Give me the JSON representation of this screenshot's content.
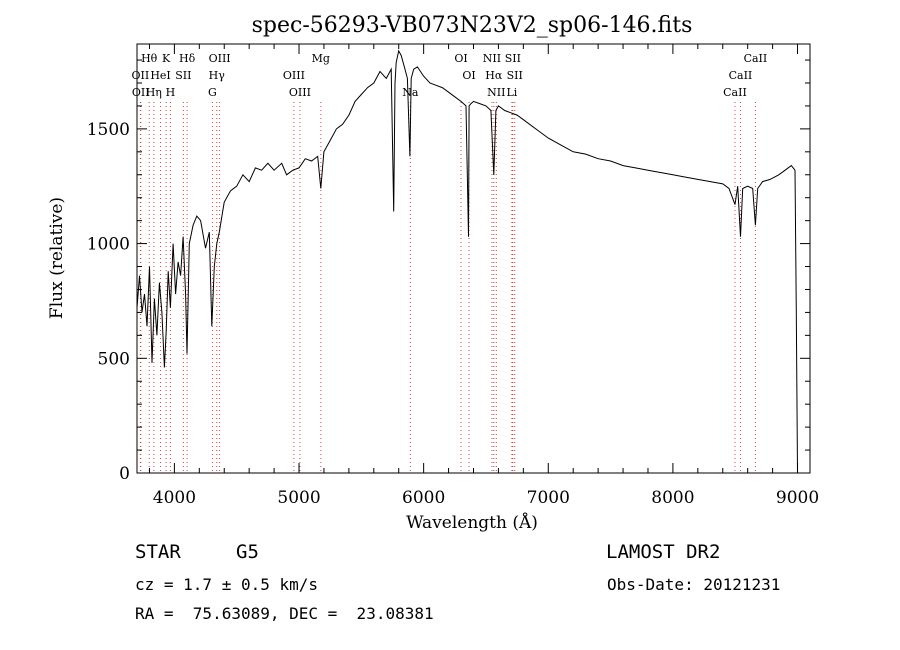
{
  "chart_data": {
    "type": "line",
    "title": "spec-56293-VB073N23V2_sp06-146.fits",
    "xlabel": "Wavelength (Å)",
    "ylabel": "Flux (relative)",
    "xlim": [
      3700,
      9100
    ],
    "ylim": [
      0,
      1870
    ],
    "x_ticks": [
      4000,
      5000,
      6000,
      7000,
      8000,
      9000
    ],
    "y_ticks": [
      0,
      500,
      1000,
      1500
    ],
    "grid": false,
    "spectrum": {
      "name": "",
      "x": [
        3700,
        3720,
        3740,
        3760,
        3780,
        3800,
        3820,
        3840,
        3860,
        3880,
        3900,
        3920,
        3934,
        3950,
        3968,
        3990,
        4010,
        4030,
        4050,
        4070,
        4090,
        4101,
        4120,
        4150,
        4180,
        4210,
        4250,
        4280,
        4300,
        4320,
        4340,
        4360,
        4400,
        4450,
        4500,
        4550,
        4600,
        4650,
        4700,
        4750,
        4800,
        4861,
        4900,
        4950,
        5000,
        5050,
        5100,
        5150,
        5175,
        5200,
        5250,
        5300,
        5350,
        5400,
        5450,
        5500,
        5550,
        5600,
        5650,
        5700,
        5740,
        5760,
        5770,
        5780,
        5800,
        5820,
        5850,
        5870,
        5890,
        5900,
        5920,
        5950,
        6000,
        6050,
        6100,
        6150,
        6200,
        6250,
        6300,
        6340,
        6360,
        6365,
        6380,
        6400,
        6450,
        6500,
        6540,
        6563,
        6580,
        6600,
        6650,
        6700,
        6750,
        6800,
        6900,
        7000,
        7100,
        7200,
        7300,
        7400,
        7500,
        7600,
        7700,
        7800,
        7900,
        8000,
        8100,
        8200,
        8300,
        8400,
        8450,
        8498,
        8520,
        8542,
        8560,
        8600,
        8640,
        8662,
        8680,
        8720,
        8780,
        8850,
        8900,
        8950,
        8980,
        8990,
        9000
      ],
      "y": [
        720,
        860,
        700,
        780,
        640,
        900,
        480,
        760,
        600,
        830,
        700,
        460,
        620,
        880,
        720,
        1000,
        780,
        920,
        860,
        1030,
        780,
        520,
        1000,
        1080,
        1120,
        1100,
        980,
        1050,
        640,
        900,
        1000,
        1050,
        1180,
        1230,
        1250,
        1300,
        1270,
        1330,
        1320,
        1350,
        1320,
        1350,
        1300,
        1320,
        1330,
        1370,
        1360,
        1380,
        1240,
        1400,
        1450,
        1500,
        1520,
        1560,
        1620,
        1650,
        1680,
        1700,
        1750,
        1720,
        1760,
        1140,
        1700,
        1790,
        1840,
        1820,
        1760,
        1720,
        1380,
        1720,
        1760,
        1770,
        1730,
        1700,
        1690,
        1680,
        1660,
        1640,
        1620,
        1600,
        1030,
        1600,
        1610,
        1620,
        1610,
        1600,
        1580,
        1300,
        1580,
        1600,
        1580,
        1570,
        1560,
        1540,
        1500,
        1460,
        1430,
        1400,
        1390,
        1370,
        1360,
        1340,
        1330,
        1320,
        1310,
        1300,
        1290,
        1280,
        1270,
        1260,
        1240,
        1170,
        1250,
        1030,
        1240,
        1250,
        1240,
        1080,
        1240,
        1270,
        1280,
        1300,
        1320,
        1340,
        1320,
        700,
        0
      ]
    },
    "line_markers": [
      {
        "label": "Hθ",
        "x": 3798,
        "row": 1
      },
      {
        "label": "K",
        "x": 3934,
        "row": 1
      },
      {
        "label": "Hδ",
        "x": 4102,
        "row": 1
      },
      {
        "label": "OIII",
        "x": 4363,
        "row": 1
      },
      {
        "label": "Mg",
        "x": 5175,
        "row": 1
      },
      {
        "label": "OI",
        "x": 6300,
        "row": 1
      },
      {
        "label": "NII",
        "x": 6548,
        "row": 1
      },
      {
        "label": "SII",
        "x": 6716,
        "row": 1
      },
      {
        "label": "CaII",
        "x": 8662,
        "row": 1
      },
      {
        "label": "OII",
        "x": 3727,
        "row": 2
      },
      {
        "label": "HeI",
        "x": 3889,
        "row": 2
      },
      {
        "label": "SII",
        "x": 4072,
        "row": 2
      },
      {
        "label": "Hγ",
        "x": 4340,
        "row": 2
      },
      {
        "label": "OIII",
        "x": 4959,
        "row": 2
      },
      {
        "label": "OI",
        "x": 6364,
        "row": 2
      },
      {
        "label": "Hα",
        "x": 6563,
        "row": 2
      },
      {
        "label": "SII",
        "x": 6731,
        "row": 2
      },
      {
        "label": "CaII",
        "x": 8542,
        "row": 2
      },
      {
        "label": "OII",
        "x": 3730,
        "row": 3
      },
      {
        "label": "Hη",
        "x": 3835,
        "row": 3
      },
      {
        "label": "H",
        "x": 3968,
        "row": 3
      },
      {
        "label": "G",
        "x": 4305,
        "row": 3
      },
      {
        "label": "OIII",
        "x": 5007,
        "row": 3
      },
      {
        "label": "Na",
        "x": 5893,
        "row": 3
      },
      {
        "label": "NII",
        "x": 6583,
        "row": 3
      },
      {
        "label": "Li",
        "x": 6708,
        "row": 3
      },
      {
        "label": "CaII",
        "x": 8498,
        "row": 3
      }
    ]
  },
  "info": {
    "object_class": "STAR",
    "subclass": "G5",
    "survey": "LAMOST DR2",
    "cz": "cz = 1.7 ± 0.5 km/s",
    "obs_date": "Obs-Date: 20121231",
    "coords": "RA =  75.63089, DEC =  23.08381"
  }
}
